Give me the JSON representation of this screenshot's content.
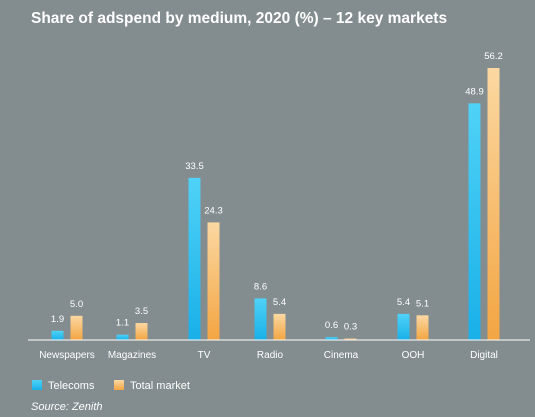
{
  "chart_data": {
    "type": "bar",
    "title": "Share of adspend by medium, 2020 (%) – 12 key markets",
    "categories": [
      "Newspapers",
      "Magazines",
      "TV",
      "Radio",
      "Cinema",
      "OOH",
      "Digital"
    ],
    "series": [
      {
        "name": "Telecoms",
        "values": [
          1.9,
          1.1,
          33.5,
          8.6,
          0.6,
          5.4,
          48.9
        ],
        "labels": [
          "1.9",
          "1.1",
          "33.5",
          "8.6",
          "0.6",
          "5.4",
          "48.9"
        ],
        "color_top": "#4fd2f7",
        "color_bottom": "#19b0e8"
      },
      {
        "name": "Total market",
        "values": [
          5.0,
          3.5,
          24.3,
          5.4,
          0.3,
          5.1,
          56.2
        ],
        "labels": [
          "5.0",
          "3.5",
          "24.3",
          "5.4",
          "0.3",
          "5.1",
          "56.2"
        ],
        "color_top": "#fbd8a2",
        "color_bottom": "#f3a542"
      }
    ],
    "ylim": [
      0,
      56.2
    ],
    "grid": false,
    "legend_position": "bottom-left",
    "source": "Source: Zenith"
  },
  "colors": {
    "background": "#838c8f",
    "baseline": "#ffffff",
    "text": "#ffffff"
  }
}
